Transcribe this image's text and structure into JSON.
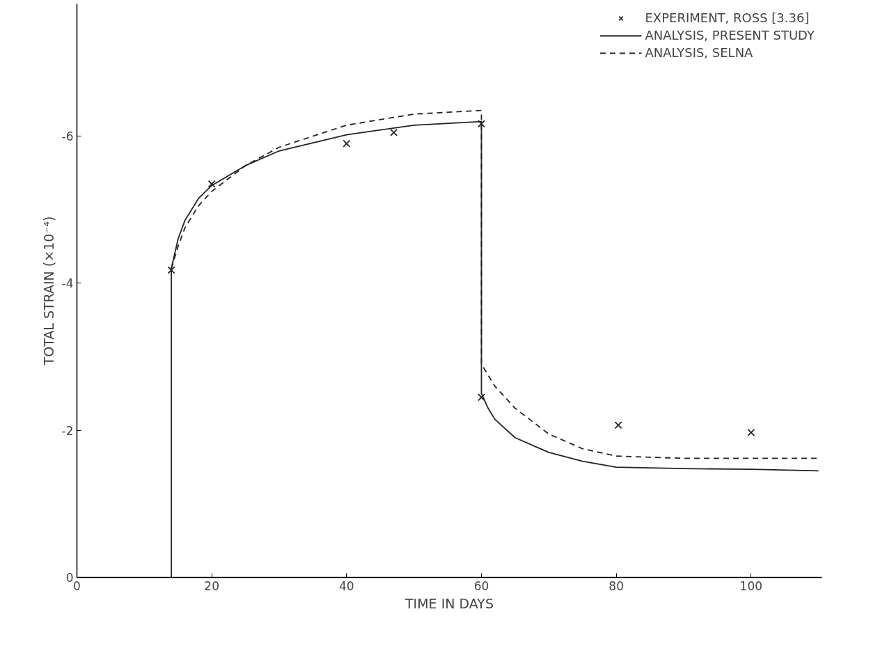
{
  "chart_data": {
    "type": "line",
    "xlabel": "TIME IN DAYS",
    "ylabel": "TOTAL STRAIN (×10⁻⁴)",
    "xlim": [
      0,
      110.5
    ],
    "ylim": [
      0,
      -7.8
    ],
    "xticks": [
      0,
      20,
      40,
      60,
      80,
      100
    ],
    "yticks": [
      0,
      -2,
      -4,
      -6
    ],
    "grid": false,
    "legend": "top right",
    "series": [
      {
        "name": "EXPERIMENT, ROSS [3.36]",
        "type": "scatter",
        "marker": "cross",
        "color": "#222222",
        "x": [
          14,
          20,
          40,
          47,
          60,
          60,
          80.3,
          100
        ],
        "values": [
          -4.18,
          -5.35,
          -5.9,
          -6.05,
          -6.17,
          -2.45,
          -2.07,
          -1.97
        ]
      },
      {
        "name": "ANALYSIS, PRESENT STUDY",
        "line_style": "solid",
        "color": "#222222",
        "x": [
          14,
          14,
          15,
          16,
          18,
          20,
          25,
          30,
          40,
          50,
          60,
          60,
          61,
          62,
          65,
          70,
          75,
          80,
          90,
          100,
          110
        ],
        "values": [
          0,
          -4.2,
          -4.6,
          -4.85,
          -5.15,
          -5.33,
          -5.6,
          -5.8,
          -6.02,
          -6.15,
          -6.2,
          -2.5,
          -2.3,
          -2.15,
          -1.9,
          -1.7,
          -1.58,
          -1.5,
          -1.48,
          -1.47,
          -1.45
        ]
      },
      {
        "name": "ANALYSIS, SELNA",
        "line_style": "dashed",
        "color": "#222222",
        "x": [
          14,
          15,
          16,
          18,
          20,
          25,
          30,
          40,
          50,
          60,
          60,
          62,
          65,
          70,
          75,
          80,
          90,
          100,
          110
        ],
        "values": [
          -4.2,
          -4.5,
          -4.75,
          -5.05,
          -5.25,
          -5.6,
          -5.85,
          -6.15,
          -6.3,
          -6.35,
          -2.9,
          -2.6,
          -2.3,
          -1.95,
          -1.75,
          -1.65,
          -1.62,
          -1.62,
          -1.62
        ]
      }
    ]
  }
}
